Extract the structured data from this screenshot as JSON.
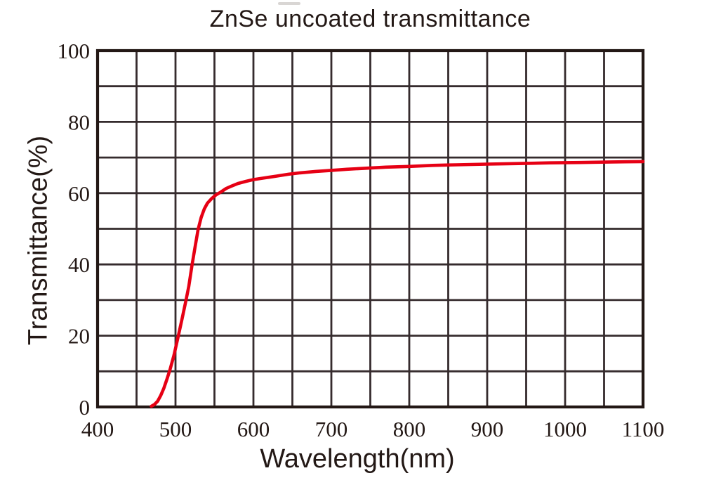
{
  "chart_data": {
    "type": "line",
    "title": "ZnSe uncoated transmittance",
    "xlabel": "Wavelength(nm)",
    "ylabel": "Transmittance(%)",
    "xlim": [
      400,
      1100
    ],
    "ylim": [
      0,
      100
    ],
    "x_grid_step": 50,
    "y_grid_step": 10,
    "x_ticks": [
      400,
      500,
      600,
      700,
      800,
      900,
      1000,
      1100
    ],
    "y_ticks": [
      0,
      20,
      40,
      60,
      80,
      100
    ],
    "grid": true,
    "legend_position": "none",
    "colors": {
      "curve": "#e60014",
      "grid": "#352b2d",
      "border": "#231815",
      "text": "#231815",
      "background": "#ffffff"
    },
    "series": [
      {
        "name": "ZnSe uncoated",
        "points": [
          [
            469,
            0.2
          ],
          [
            473,
            0.7
          ],
          [
            477,
            1.6
          ],
          [
            481,
            3.2
          ],
          [
            485,
            5.2
          ],
          [
            489,
            7.8
          ],
          [
            493,
            10.5
          ],
          [
            498,
            14.5
          ],
          [
            503,
            19.3
          ],
          [
            508,
            24.3
          ],
          [
            513,
            29.4
          ],
          [
            517,
            33.8
          ],
          [
            521,
            39.5
          ],
          [
            525,
            44.8
          ],
          [
            529,
            49.8
          ],
          [
            533,
            53.2
          ],
          [
            537,
            55.6
          ],
          [
            541,
            57.2
          ],
          [
            546,
            58.4
          ],
          [
            552,
            59.5
          ],
          [
            558,
            60.3
          ],
          [
            565,
            61.3
          ],
          [
            572,
            62.0
          ],
          [
            580,
            62.7
          ],
          [
            590,
            63.3
          ],
          [
            600,
            63.8
          ],
          [
            615,
            64.3
          ],
          [
            630,
            64.8
          ],
          [
            645,
            65.3
          ],
          [
            660,
            65.7
          ],
          [
            680,
            66.1
          ],
          [
            700,
            66.4
          ],
          [
            720,
            66.7
          ],
          [
            745,
            67.0
          ],
          [
            770,
            67.3
          ],
          [
            800,
            67.5
          ],
          [
            830,
            67.8
          ],
          [
            860,
            67.95
          ],
          [
            900,
            68.15
          ],
          [
            940,
            68.3
          ],
          [
            980,
            68.5
          ],
          [
            1020,
            68.6
          ],
          [
            1060,
            68.75
          ],
          [
            1100,
            68.85
          ]
        ]
      }
    ]
  }
}
